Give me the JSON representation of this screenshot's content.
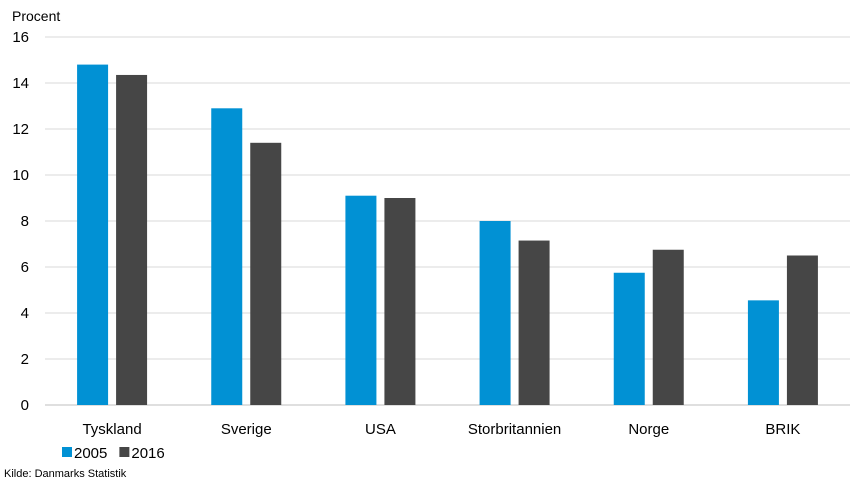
{
  "chart_data": {
    "type": "bar",
    "title": "",
    "ylabel": "Procent",
    "xlabel": "",
    "ylim": [
      0,
      16
    ],
    "yticks": [
      0,
      2,
      4,
      6,
      8,
      10,
      12,
      14,
      16
    ],
    "grid": true,
    "legend": "bottom-left",
    "categories": [
      "Tyskland",
      "Sverige",
      "USA",
      "Storbritannien",
      "Norge",
      "BRIK"
    ],
    "series": [
      {
        "name": "2005",
        "color": "#0191D4",
        "values": [
          14.8,
          12.9,
          9.1,
          8.0,
          5.75,
          4.55
        ]
      },
      {
        "name": "2016",
        "color": "#464646",
        "values": [
          14.35,
          11.4,
          9.0,
          7.15,
          6.75,
          6.5
        ]
      }
    ]
  },
  "source": "Kilde: Danmarks Statistik"
}
